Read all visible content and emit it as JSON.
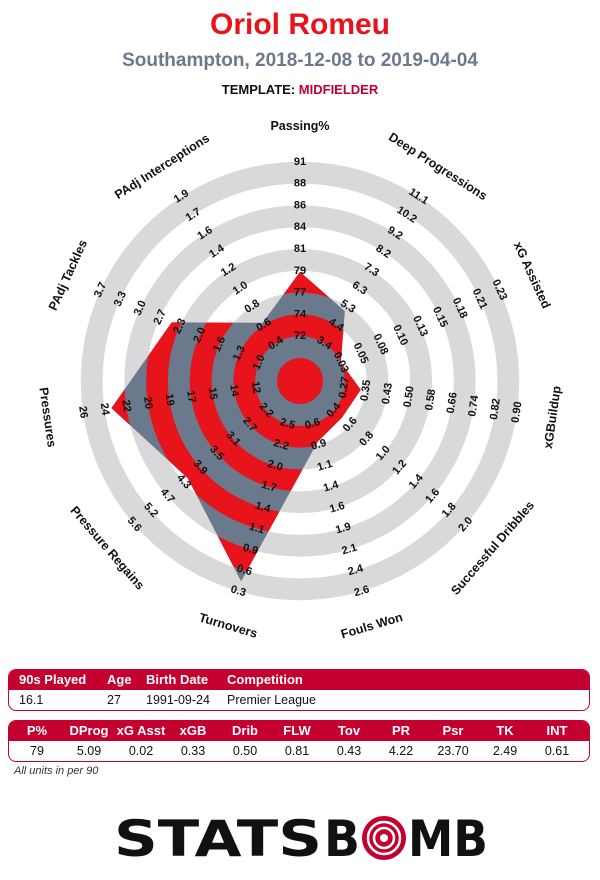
{
  "header": {
    "title": "Oriol Romeu",
    "subtitle": "Southampton, 2018-12-08 to 2019-04-04",
    "template_label": "TEMPLATE:",
    "template_value": "MIDFIELDER"
  },
  "colors": {
    "red": "#e8141b",
    "dark_red": "#c3002f",
    "slate": "#6a7a8c",
    "polygon": "#6a7a8c",
    "ring_grey": "#d9d9d9"
  },
  "chart_data": {
    "type": "radar",
    "title": "Oriol Romeu",
    "rings": 5,
    "axes": [
      {
        "name": "Passing%",
        "ticks": [
          "72",
          "74",
          "77",
          "79",
          "81",
          "84",
          "86",
          "88",
          "91"
        ],
        "value": 79
      },
      {
        "name": "Deep Progressions",
        "ticks": [
          "3.4",
          "4.4",
          "5.3",
          "6.3",
          "7.3",
          "8.2",
          "9.2",
          "10.2",
          "11.1"
        ],
        "value": 5.09
      },
      {
        "name": "xG Assisted",
        "ticks": [
          "0.03",
          "0.05",
          "0.08",
          "0.10",
          "0.13",
          "0.15",
          "0.18",
          "0.21",
          "0.23"
        ],
        "value": 0.02
      },
      {
        "name": "xGBuildup",
        "ticks": [
          "0.27",
          "0.35",
          "0.43",
          "0.50",
          "0.58",
          "0.66",
          "0.74",
          "0.82",
          "0.90"
        ],
        "value": 0.33
      },
      {
        "name": "Successful Dribbles",
        "ticks": [
          "0.4",
          "0.6",
          "0.8",
          "1.0",
          "1.2",
          "1.4",
          "1.6",
          "1.8",
          "2.0"
        ],
        "value": 0.5
      },
      {
        "name": "Fouls Won",
        "ticks": [
          "0.6",
          "0.9",
          "1.1",
          "1.4",
          "1.6",
          "1.9",
          "2.1",
          "2.4",
          "2.6"
        ],
        "value": 0.81
      },
      {
        "name": "Turnovers",
        "ticks": [
          "2.5",
          "2.2",
          "2.0",
          "1.7",
          "1.4",
          "1.1",
          "0.9",
          "0.6",
          "0.3"
        ],
        "value": 0.43
      },
      {
        "name": "Pressure Regains",
        "ticks": [
          "2.2",
          "2.7",
          "3.1",
          "3.5",
          "3.9",
          "4.3",
          "4.7",
          "5.2",
          "5.6"
        ],
        "value": 4.22
      },
      {
        "name": "Pressures",
        "ticks": [
          "12",
          "14",
          "15",
          "17",
          "19",
          "20",
          "22",
          "24",
          "26"
        ],
        "value": 23.7
      },
      {
        "name": "PAdj Tackles",
        "ticks": [
          "1.0",
          "1.3",
          "1.6",
          "2.0",
          "2.3",
          "2.7",
          "3.0",
          "3.3",
          "3.7"
        ],
        "value": 2.49
      },
      {
        "name": "PAdj Interceptions",
        "ticks": [
          "0.4",
          "0.6",
          "0.8",
          "1.0",
          "1.2",
          "1.4",
          "1.6",
          "1.7",
          "1.9"
        ],
        "value": 0.61
      }
    ]
  },
  "bio": {
    "headers": [
      "90s Played",
      "Age",
      "Birth Date",
      "Competition"
    ],
    "values": [
      "16.1",
      "27",
      "1991-09-24",
      "Premier League"
    ]
  },
  "stats": {
    "headers": [
      "P%",
      "DProg",
      "xG Asst",
      "xGB",
      "Drib",
      "FLW",
      "Tov",
      "PR",
      "Psr",
      "TK",
      "INT"
    ],
    "values": [
      "79",
      "5.09",
      "0.02",
      "0.33",
      "0.50",
      "0.81",
      "0.43",
      "4.22",
      "23.70",
      "2.49",
      "0.61"
    ]
  },
  "footnote": "All units in per 90",
  "logo": {
    "text_left": "STATS",
    "text_right": "BMB",
    "text_full": "STATSBOMB"
  }
}
